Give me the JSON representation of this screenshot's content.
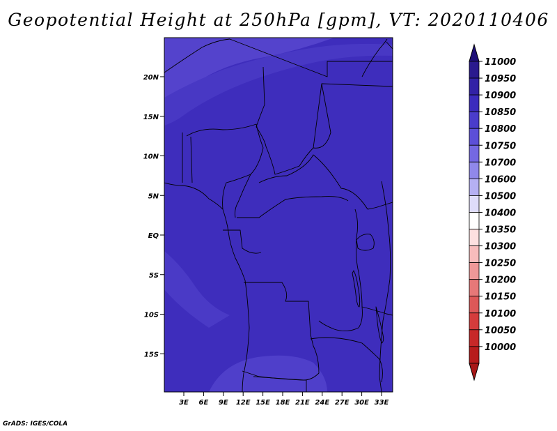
{
  "title": "Geopotential Height at 250hPa [gpm], VT: 2020110406",
  "credit": "GrADS: IGES/COLA",
  "map": {
    "lat_labels": [
      "20N",
      "15N",
      "10N",
      "5N",
      "EQ",
      "5S",
      "10S",
      "15S"
    ],
    "lon_labels": [
      "3E",
      "6E",
      "9E",
      "12E",
      "15E",
      "18E",
      "21E",
      "24E",
      "27E",
      "30E",
      "33E"
    ],
    "fill_color": "#3e2dbc",
    "bands": [
      {
        "name": "north-light-band",
        "color": "#6555d8",
        "value": "10850"
      },
      {
        "name": "north-mid-band",
        "color": "#5443cc",
        "value": "10900"
      },
      {
        "name": "north-inner-band",
        "color": "#4838c4",
        "value": "10900"
      },
      {
        "name": "southwest-band",
        "color": "#4a3ac6",
        "value": "10900"
      },
      {
        "name": "south-band",
        "color": "#4f3fca",
        "value": "10900"
      }
    ]
  },
  "colorbar": {
    "items": [
      {
        "label": "11000",
        "color": "#2a1a8e"
      },
      {
        "label": "10950",
        "color": "#3222a6"
      },
      {
        "label": "10900",
        "color": "#3b2bbd"
      },
      {
        "label": "10850",
        "color": "#4a3ccb"
      },
      {
        "label": "10800",
        "color": "#5c4fd8"
      },
      {
        "label": "10750",
        "color": "#7468e2"
      },
      {
        "label": "10700",
        "color": "#9088ea"
      },
      {
        "label": "10600",
        "color": "#b5b0f3"
      },
      {
        "label": "10500",
        "color": "#dedcfa"
      },
      {
        "label": "10400",
        "color": "#ffffff"
      },
      {
        "label": "10350",
        "color": "#fde0e0"
      },
      {
        "label": "10300",
        "color": "#f7bcbc"
      },
      {
        "label": "10250",
        "color": "#ef9898"
      },
      {
        "label": "10200",
        "color": "#e67878"
      },
      {
        "label": "10150",
        "color": "#dd5858"
      },
      {
        "label": "10100",
        "color": "#d43c3c"
      },
      {
        "label": "10050",
        "color": "#c72828"
      },
      {
        "label": "10000",
        "color": "#b71c1c"
      }
    ],
    "top_arrow_color": "#1e0f78",
    "bottom_arrow_color": "#a81818"
  }
}
